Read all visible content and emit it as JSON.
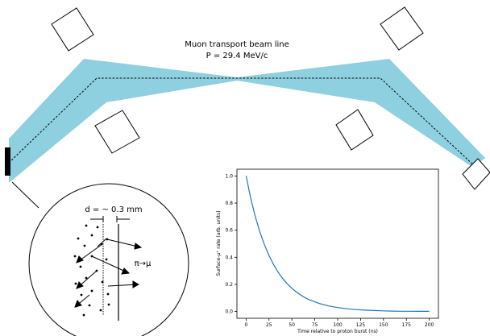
{
  "beamline": {
    "title": "Muon transport beam line",
    "momentum": "P = 29.4 MeV/c"
  },
  "inset": {
    "thickness_label": "d = ~ 0.3 mm",
    "decay_label": "π→μ"
  },
  "chart_data": {
    "type": "line",
    "xlabel": "Time relative to proton burst (ns)",
    "ylabel": "Surface-μ⁺ rate (arb. units)",
    "xlim": [
      -10,
      210
    ],
    "ylim": [
      -0.05,
      1.05
    ],
    "xticks": [
      0,
      25,
      50,
      75,
      100,
      125,
      150,
      175,
      200
    ],
    "yticks": [
      0.0,
      0.2,
      0.4,
      0.6,
      0.8,
      1.0
    ],
    "xtick_labels": [
      "0",
      "25",
      "50",
      "75",
      "100",
      "125",
      "150",
      "175",
      "200"
    ],
    "ytick_labels": [
      "0.0",
      "0.2",
      "0.4",
      "0.6",
      "0.8",
      "1.0"
    ],
    "series": [
      {
        "x": [
          0,
          5,
          10,
          15,
          20,
          25,
          30,
          35,
          40,
          45,
          50,
          55,
          60,
          65,
          70,
          75,
          80,
          85,
          90,
          95,
          100,
          110,
          120,
          130,
          140,
          150,
          160,
          170,
          180,
          190,
          200
        ],
        "values": [
          1.0,
          0.838,
          0.702,
          0.588,
          0.493,
          0.413,
          0.346,
          0.29,
          0.243,
          0.204,
          0.171,
          0.143,
          0.12,
          0.1,
          0.084,
          0.071,
          0.059,
          0.05,
          0.041,
          0.035,
          0.029,
          0.02,
          0.014,
          0.01,
          0.007,
          0.005,
          0.003,
          0.002,
          0.002,
          0.001,
          0.001
        ],
        "color": "#1f77b4"
      }
    ]
  },
  "colors": {
    "beam_fill": "#8ecfe0",
    "curve": "#1f77b4"
  }
}
